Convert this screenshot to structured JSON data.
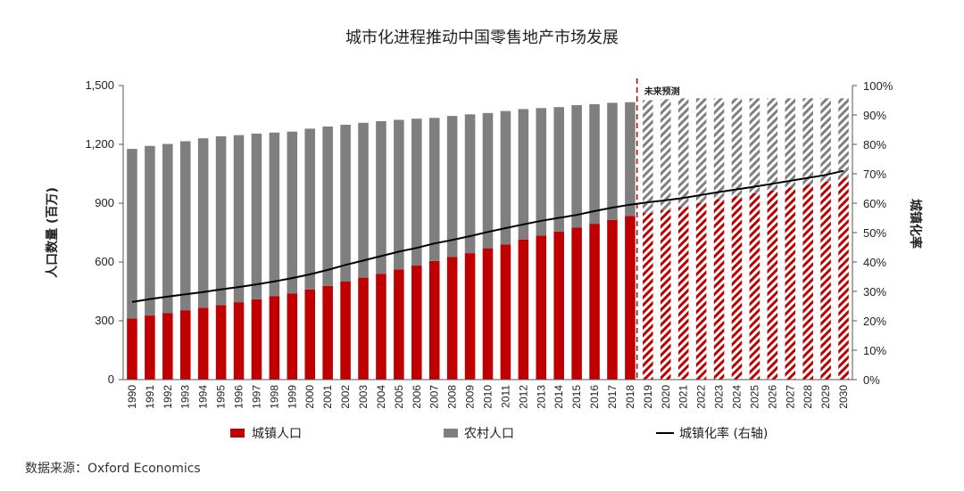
{
  "title": "城市化进程推动中国零售地产市场发展",
  "source": "数据来源：Oxford Economics",
  "colors": {
    "urban": "#c00000",
    "rural": "#7f7f7f",
    "rate": "#000000",
    "forecast_line": "#c00000"
  },
  "chart_data": {
    "type": "bar",
    "stacked": true,
    "categories": [
      "1990",
      "1991",
      "1992",
      "1993",
      "1994",
      "1995",
      "1996",
      "1997",
      "1998",
      "1999",
      "2000",
      "2001",
      "2002",
      "2003",
      "2004",
      "2005",
      "2006",
      "2007",
      "2008",
      "2009",
      "2010",
      "2011",
      "2012",
      "2013",
      "2014",
      "2015",
      "2016",
      "2017",
      "2018",
      "2019",
      "2020",
      "2021",
      "2022",
      "2023",
      "2024",
      "2025",
      "2026",
      "2027",
      "2028",
      "2029",
      "2030"
    ],
    "forecast_start": "2019",
    "forecast_label": "未来预测",
    "ylabel": "人口数量 (百万)",
    "y2label": "城镇化率",
    "ylim": [
      0,
      1500
    ],
    "y2lim": [
      0,
      100
    ],
    "yticks": [
      "0",
      "300",
      "600",
      "900",
      "1,200",
      "1,500"
    ],
    "y2ticks": [
      "0%",
      "10%",
      "20%",
      "30%",
      "40%",
      "50%",
      "60%",
      "70%",
      "80%",
      "90%",
      "100%"
    ],
    "series": [
      {
        "name": "城镇人口",
        "type": "bar",
        "values": [
          312,
          327,
          340,
          354,
          367,
          380,
          395,
          410,
          425,
          440,
          460,
          478,
          500,
          520,
          540,
          562,
          582,
          605,
          625,
          645,
          670,
          690,
          715,
          735,
          755,
          775,
          795,
          815,
          835,
          850,
          865,
          880,
          900,
          920,
          935,
          950,
          965,
          980,
          995,
          1010,
          1030
        ]
      },
      {
        "name": "农村人口",
        "type": "bar",
        "values": [
          865,
          865,
          862,
          862,
          864,
          861,
          852,
          845,
          835,
          825,
          820,
          813,
          800,
          790,
          778,
          763,
          749,
          730,
          720,
          708,
          690,
          680,
          665,
          650,
          635,
          625,
          610,
          597,
          580,
          575,
          565,
          555,
          535,
          515,
          500,
          485,
          470,
          455,
          440,
          425,
          405
        ]
      },
      {
        "name": "城镇化率 (右轴)",
        "type": "line",
        "axis": "right",
        "values": [
          26.4,
          27.4,
          28.2,
          29.0,
          29.8,
          30.7,
          31.5,
          32.4,
          33.4,
          34.5,
          35.8,
          37.3,
          39.0,
          40.5,
          42.0,
          43.5,
          44.8,
          46.3,
          47.5,
          48.8,
          50.2,
          51.5,
          52.8,
          54.0,
          55.0,
          56.0,
          57.3,
          58.5,
          59.5,
          60.3,
          61.0,
          61.8,
          62.8,
          63.8,
          64.7,
          65.6,
          66.6,
          67.6,
          68.6,
          69.6,
          71.0
        ]
      }
    ],
    "legend_position": "bottom"
  },
  "legend": {
    "urban_label": "城镇人口",
    "rural_label": "农村人口",
    "rate_label": "城镇化率 (右轴)"
  }
}
